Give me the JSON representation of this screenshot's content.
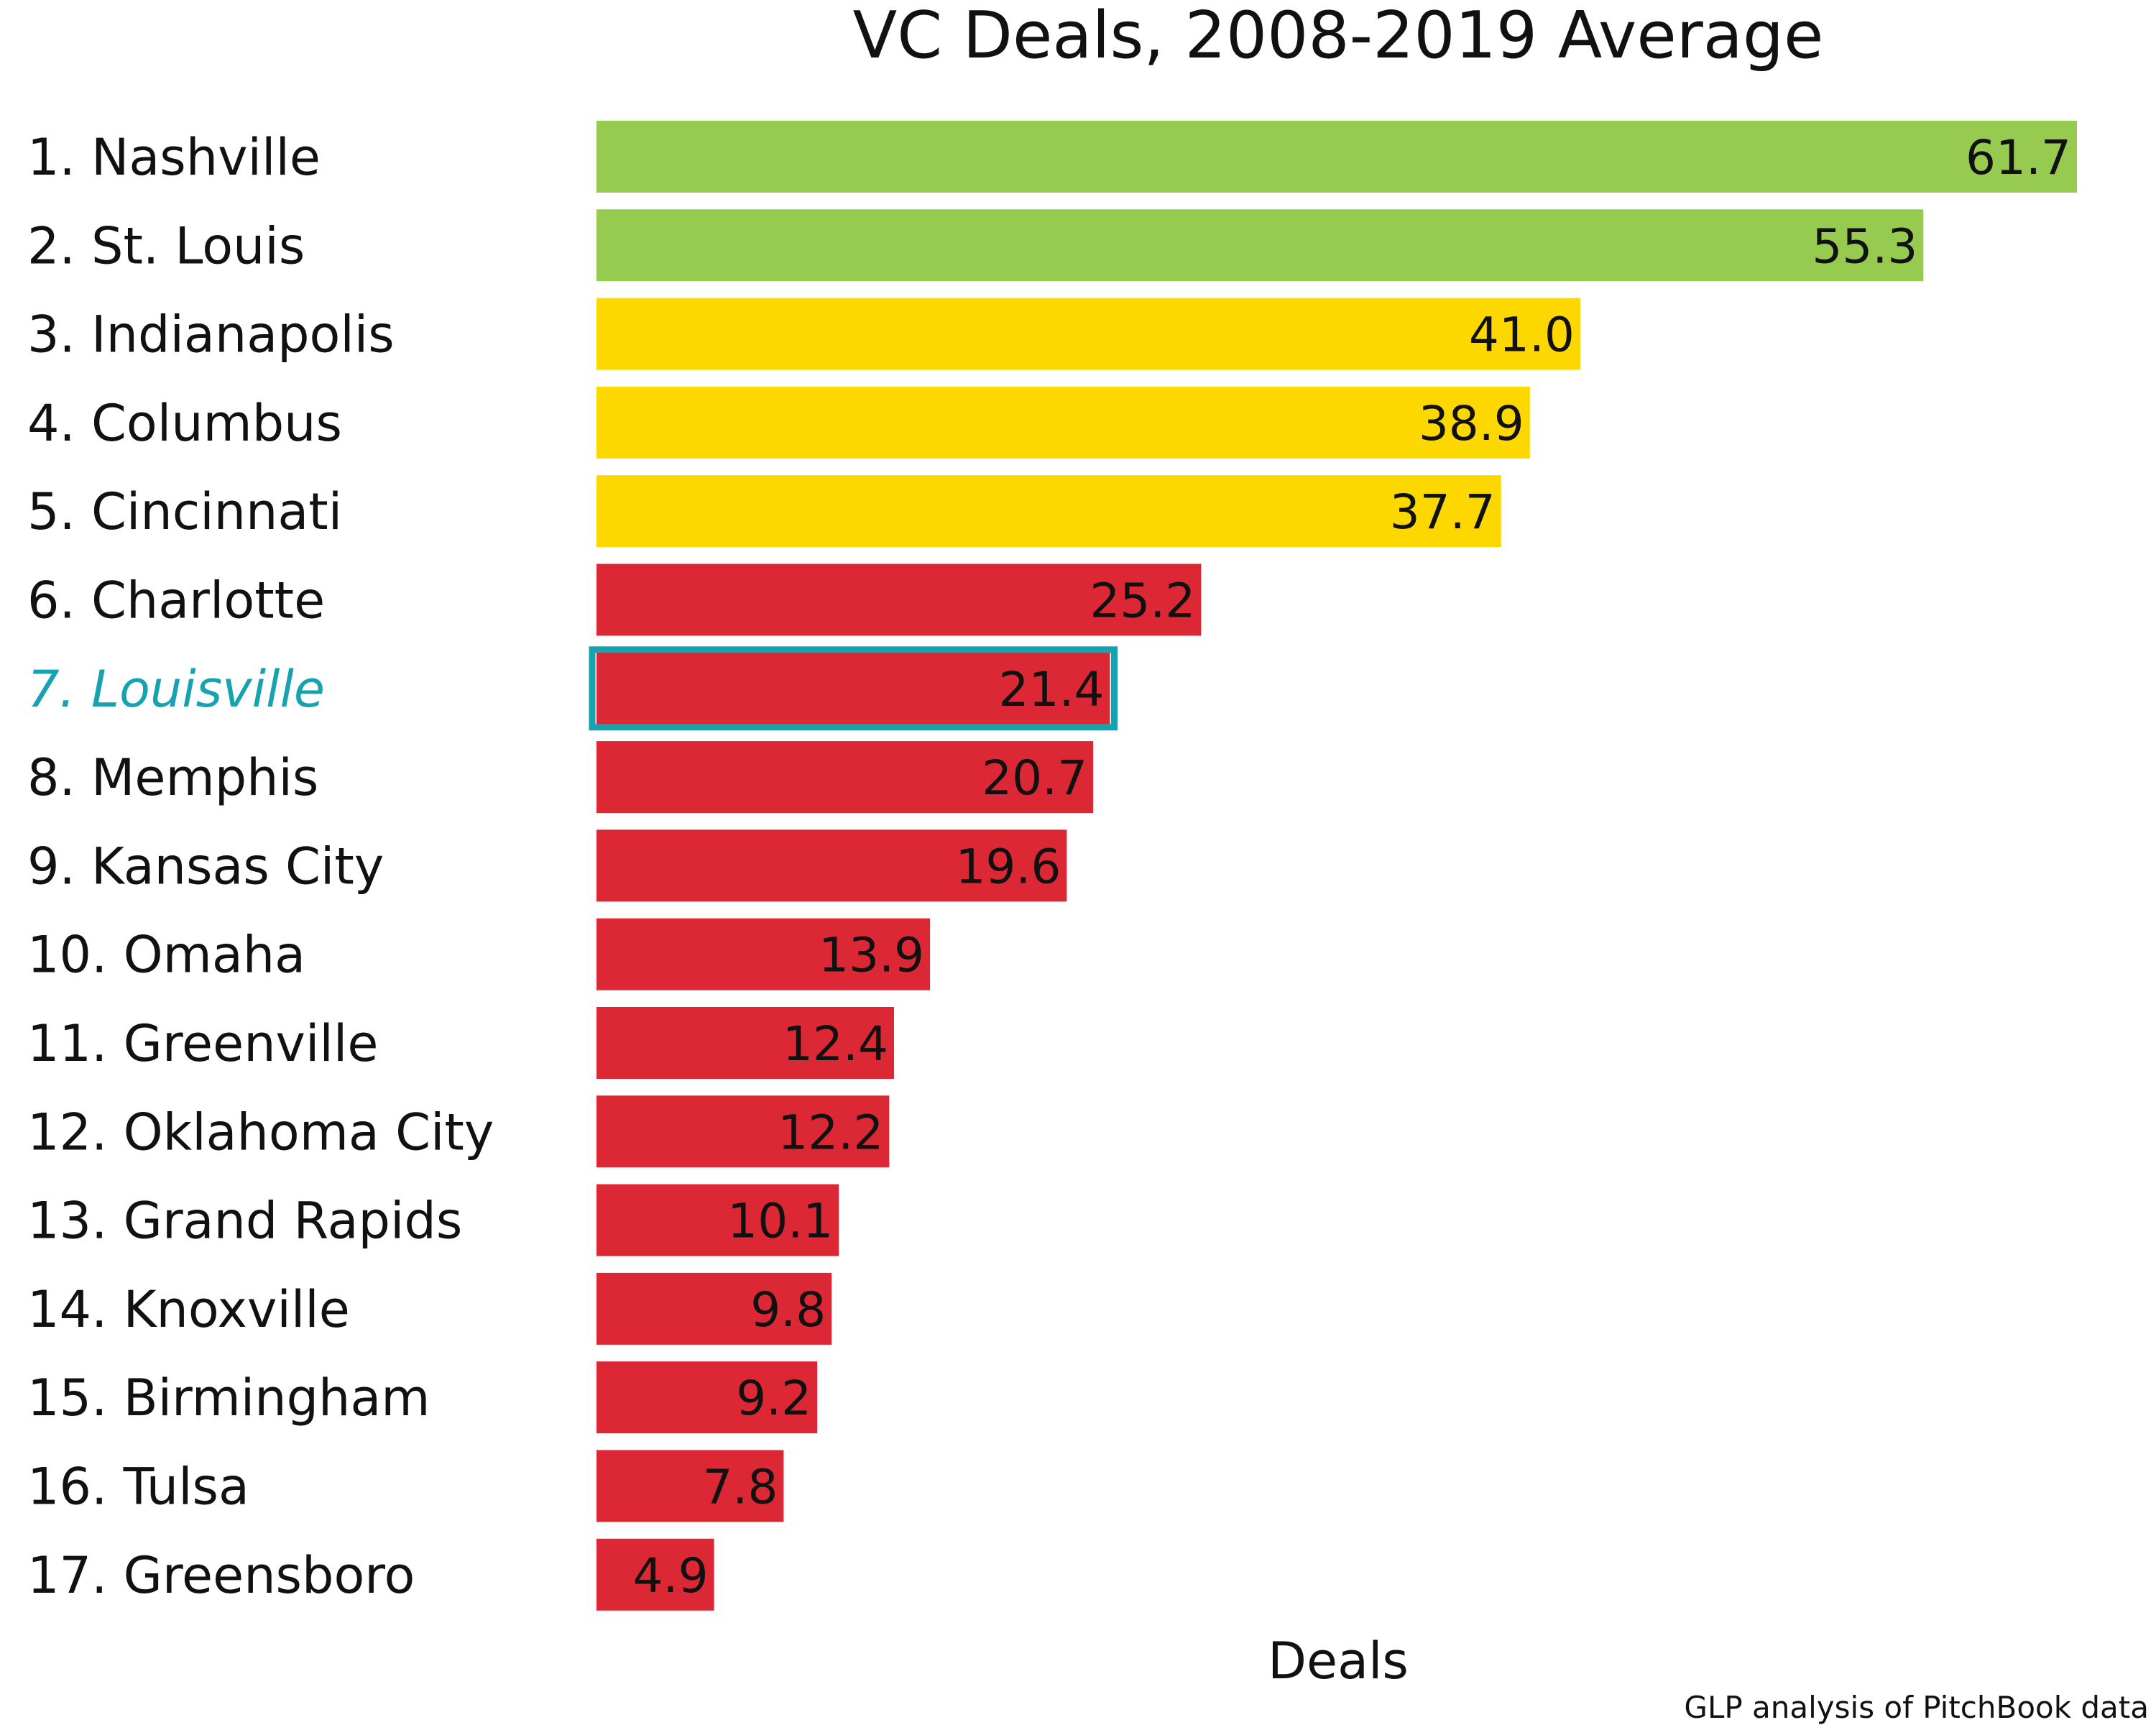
{
  "chart_data": {
    "type": "bar",
    "orientation": "horizontal",
    "title": "VC Deals, 2008-2019 Average",
    "xlabel": "Deals",
    "ylabel": "",
    "source": "GLP analysis of PitchBook data",
    "categories": [
      "1. Nashville",
      "2. St. Louis",
      "3. Indianapolis",
      "4. Columbus",
      "5. Cincinnati",
      "6. Charlotte",
      "7. Louisville",
      "8. Memphis",
      "9. Kansas City",
      "10. Omaha",
      "11. Greenville",
      "12. Oklahoma City",
      "13. Grand Rapids",
      "14. Knoxville",
      "15. Birmingham",
      "16. Tulsa",
      "17. Greensboro"
    ],
    "values": [
      61.7,
      55.3,
      41.0,
      38.9,
      37.7,
      25.2,
      21.4,
      20.7,
      19.6,
      13.9,
      12.4,
      12.2,
      10.1,
      9.8,
      9.2,
      7.8,
      4.9
    ],
    "value_labels": [
      "61.7",
      "55.3",
      "41.0",
      "38.9",
      "37.7",
      "25.2",
      "21.4",
      "20.7",
      "19.6",
      "13.9",
      "12.4",
      "12.2",
      "10.1",
      "9.8",
      "9.2",
      "7.8",
      "4.9"
    ],
    "bar_groups": [
      "green",
      "green",
      "yellow",
      "yellow",
      "yellow",
      "red",
      "red",
      "red",
      "red",
      "red",
      "red",
      "red",
      "red",
      "red",
      "red",
      "red",
      "red"
    ],
    "group_colors": {
      "green": "#96cb50",
      "yellow": "#fdd700",
      "red": "#dc2834"
    },
    "highlight": {
      "category": "7. Louisville",
      "color": "#17a2b0"
    },
    "xlim": [
      0,
      61.7
    ],
    "grid": false,
    "legend": "none"
  }
}
